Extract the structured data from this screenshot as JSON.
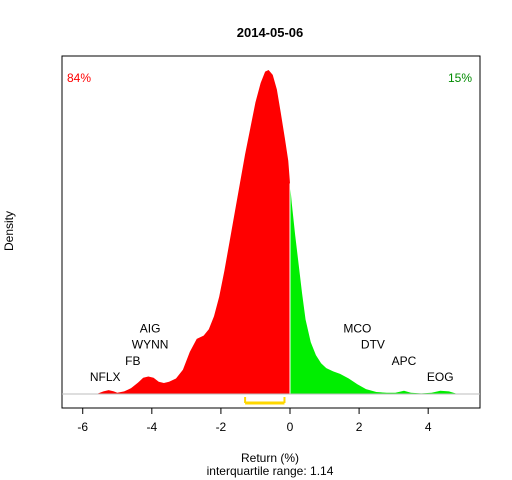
{
  "chart_data": {
    "type": "area",
    "title": "2014-05-06",
    "xlabel": "Return (%)",
    "ylabel": "Density",
    "subtitle": "interquartile range: 1.14",
    "xlim": [
      -6.6,
      5.5
    ],
    "ylim": [
      0,
      1
    ],
    "xticks": [
      -6,
      -4,
      -2,
      0,
      2,
      4
    ],
    "xtick_labels": [
      "-6",
      "-4",
      "-2",
      "0",
      "2",
      "4"
    ],
    "split_at": 0,
    "left_percent": "84%",
    "right_percent": "15%",
    "colors": {
      "negative": "#ff0000",
      "positive": "#00ee00",
      "baseline": "#bebebe",
      "iqr": "#ffd700",
      "left_percent": "#ff0000",
      "right_percent": "#008b00"
    },
    "iqr": [
      -1.3,
      -0.16
    ],
    "density": [
      [
        -5.6,
        0.0
      ],
      [
        -5.4,
        0.008
      ],
      [
        -5.25,
        0.012
      ],
      [
        -5.1,
        0.008
      ],
      [
        -5.0,
        0.004
      ],
      [
        -4.8,
        0.008
      ],
      [
        -4.6,
        0.018
      ],
      [
        -4.4,
        0.035
      ],
      [
        -4.25,
        0.05
      ],
      [
        -4.1,
        0.054
      ],
      [
        -3.95,
        0.05
      ],
      [
        -3.8,
        0.038
      ],
      [
        -3.65,
        0.034
      ],
      [
        -3.5,
        0.038
      ],
      [
        -3.3,
        0.048
      ],
      [
        -3.1,
        0.075
      ],
      [
        -2.9,
        0.13
      ],
      [
        -2.7,
        0.17
      ],
      [
        -2.5,
        0.18
      ],
      [
        -2.35,
        0.2
      ],
      [
        -2.2,
        0.24
      ],
      [
        -2.05,
        0.3
      ],
      [
        -1.9,
        0.38
      ],
      [
        -1.75,
        0.47
      ],
      [
        -1.6,
        0.56
      ],
      [
        -1.45,
        0.65
      ],
      [
        -1.3,
        0.74
      ],
      [
        -1.15,
        0.82
      ],
      [
        -1.0,
        0.9
      ],
      [
        -0.85,
        0.96
      ],
      [
        -0.72,
        0.995
      ],
      [
        -0.62,
        1.0
      ],
      [
        -0.5,
        0.985
      ],
      [
        -0.38,
        0.94
      ],
      [
        -0.27,
        0.87
      ],
      [
        -0.15,
        0.79
      ],
      [
        -0.05,
        0.72
      ],
      [
        0.0,
        0.65
      ],
      [
        0.05,
        0.59
      ],
      [
        0.15,
        0.49
      ],
      [
        0.25,
        0.4
      ],
      [
        0.35,
        0.31
      ],
      [
        0.45,
        0.23
      ],
      [
        0.6,
        0.16
      ],
      [
        0.75,
        0.12
      ],
      [
        0.9,
        0.095
      ],
      [
        1.05,
        0.08
      ],
      [
        1.25,
        0.07
      ],
      [
        1.45,
        0.062
      ],
      [
        1.7,
        0.048
      ],
      [
        1.95,
        0.03
      ],
      [
        2.2,
        0.015
      ],
      [
        2.5,
        0.006
      ],
      [
        2.8,
        0.004
      ],
      [
        3.05,
        0.004
      ],
      [
        3.3,
        0.01
      ],
      [
        3.5,
        0.004
      ],
      [
        3.8,
        0.002
      ],
      [
        4.1,
        0.004
      ],
      [
        4.35,
        0.01
      ],
      [
        4.6,
        0.008
      ],
      [
        4.85,
        0.0
      ]
    ],
    "annotations": [
      {
        "label": "AIG",
        "x": -4.05,
        "y": 0.19
      },
      {
        "label": "WYNN",
        "x": -4.05,
        "y": 0.14
      },
      {
        "label": "FB",
        "x": -4.55,
        "y": 0.09
      },
      {
        "label": "NFLX",
        "x": -5.35,
        "y": 0.04
      },
      {
        "label": "MCO",
        "x": 1.95,
        "y": 0.19
      },
      {
        "label": "DTV",
        "x": 2.4,
        "y": 0.14
      },
      {
        "label": "APC",
        "x": 3.3,
        "y": 0.09
      },
      {
        "label": "EOG",
        "x": 4.35,
        "y": 0.04
      }
    ]
  }
}
